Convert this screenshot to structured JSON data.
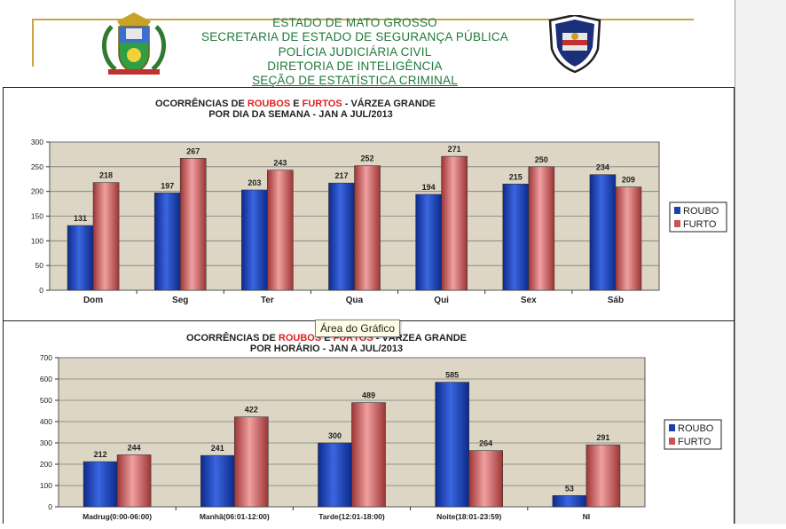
{
  "header": {
    "lines": [
      "ESTADO  DE MATO  GROSSO",
      "SECRETARIA  DE ESTADO DE SEGURANÇA  PÚBLICA",
      "POLÍCIA  JUDICIÁRIA  CIVIL",
      "DIRETORIA  DE INTELIGÊNCIA",
      "SEÇÃO  DE ESTATÍSTICA  CRIMINAL"
    ]
  },
  "tooltip": "Área do Gráfico",
  "colors": {
    "roubo": "#1f3fb0",
    "furto": "#c85454",
    "plot_bg": "#ddd6c4",
    "title_red": "#e02020"
  },
  "chart_data": [
    {
      "type": "bar",
      "title_parts": [
        "OCORRÊNCIAS  DE ",
        "ROUBOS",
        " E ",
        "FURTOS",
        "  -  VÁRZEA  GRANDE"
      ],
      "subtitle": "POR DIA DA SEMANA  -  JAN A JUL/2013",
      "categories": [
        "Dom",
        "Seg",
        "Ter",
        "Qua",
        "Qui",
        "Sex",
        "Sáb"
      ],
      "series": [
        {
          "name": "ROUBO",
          "values": [
            131,
            197,
            203,
            217,
            194,
            215,
            234
          ]
        },
        {
          "name": "FURTO",
          "values": [
            218,
            267,
            243,
            252,
            271,
            250,
            209
          ]
        }
      ],
      "ylim": [
        0,
        300
      ],
      "yticks": [
        0,
        50,
        100,
        150,
        200,
        250,
        300
      ],
      "grid": true,
      "legend": "right"
    },
    {
      "type": "bar",
      "title_parts": [
        "OCORRÊNCIAS  DE ",
        "ROUBOS",
        " E ",
        "FURTOS",
        "  -  VÁRZEA  GRANDE"
      ],
      "subtitle": "POR HORÁRIO  -  JAN A JUL/2013",
      "categories": [
        "Madrug(0:00-06:00)",
        "Manhã(06:01-12:00)",
        "Tarde(12:01-18:00)",
        "Noite(18:01-23:59)",
        "NI"
      ],
      "series": [
        {
          "name": "ROUBO",
          "values": [
            212,
            241,
            300,
            585,
            53
          ]
        },
        {
          "name": "FURTO",
          "values": [
            244,
            422,
            489,
            264,
            291
          ]
        }
      ],
      "ylim": [
        0,
        700
      ],
      "yticks": [
        0,
        100,
        200,
        300,
        400,
        500,
        600,
        700
      ],
      "grid": true,
      "legend": "right"
    }
  ]
}
